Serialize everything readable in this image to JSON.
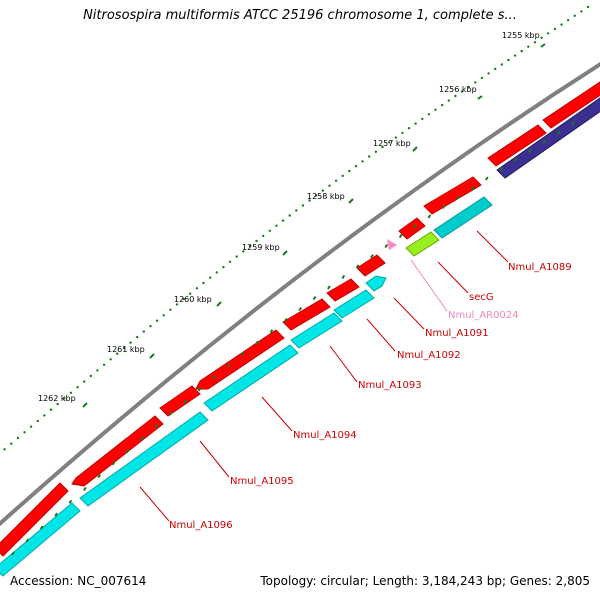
{
  "title": "Nitrosospira multiformis ATCC 25196 chromosome 1, complete s...",
  "footer": {
    "accession": "Accession: NC_007614",
    "topology": "Topology: circular; Length: 3,184,243 bp; Genes: 2,805"
  },
  "scale_labels": [
    "1255 kbp",
    "1256 kbp",
    "1257 kbp",
    "1258 kbp",
    "1259 kbp",
    "1260 kbp",
    "1261 kbp",
    "1262 kbp"
  ],
  "gene_labels": [
    "Nmul_A1089",
    "secG",
    "Nmul_AR0024",
    "Nmul_A1091",
    "Nmul_A1092",
    "Nmul_A1093",
    "Nmul_A1094",
    "Nmul_A1095",
    "Nmul_A1096"
  ],
  "colors": {
    "cds": "#ff0000",
    "cds_forward": "#00e5e5",
    "cds_dark": "#3b2f8f",
    "secg": "#99ee22",
    "trna": "#ff88cc",
    "backbone": "#808080",
    "tick": "#1a7a1a",
    "label_red": "#cc0000",
    "label_pink": "#ee88bb"
  }
}
